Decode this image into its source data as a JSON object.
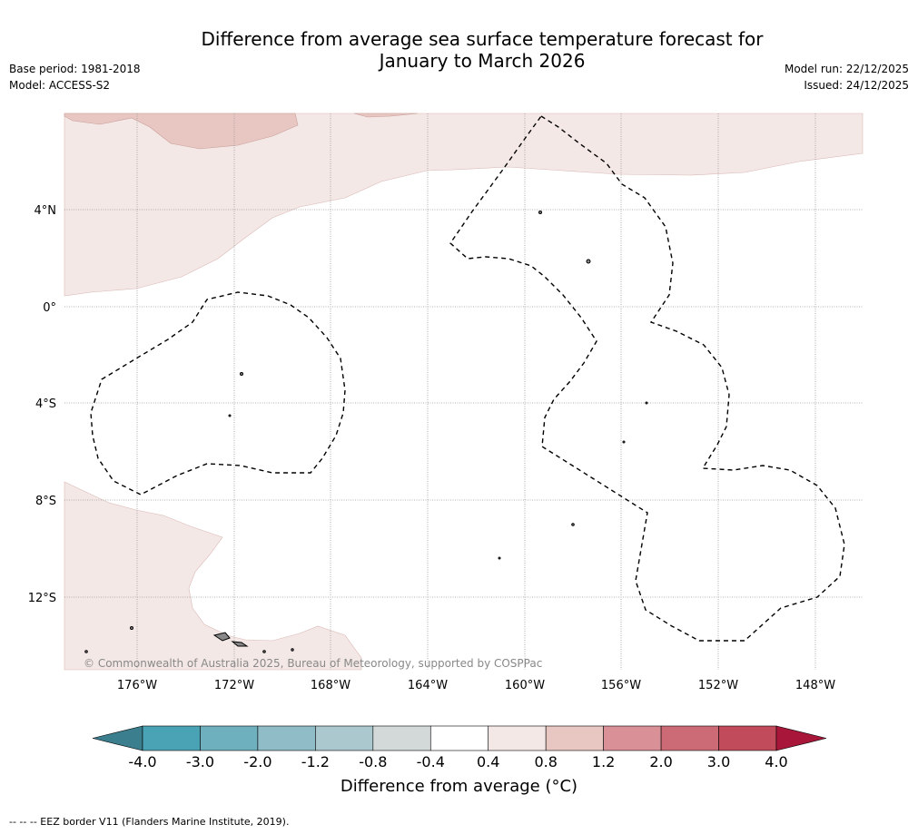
{
  "title": {
    "line1": "Difference from average sea surface temperature forecast for",
    "line2": "January to March 2026"
  },
  "meta_left": {
    "base_period": "Base period: 1981-2018",
    "model": "Model: ACCESS-S2"
  },
  "meta_right": {
    "model_run": "Model run: 22/12/2025",
    "issued": "Issued: 24/12/2025"
  },
  "map": {
    "lat_labels": [
      "4°N",
      "0°",
      "4°S",
      "8°S",
      "12°S"
    ],
    "lon_labels": [
      "176°W",
      "172°W",
      "168°W",
      "164°W",
      "160°W",
      "156°W",
      "152°W",
      "148°W"
    ],
    "copyright": "© Commonwealth of Australia 2025, Bureau of Meteorology, supported by COSPPac",
    "colors": {
      "anomaly_0_4_0_8": "#f4e8e6",
      "anomaly_0_8_1_2": "#e8c6c1",
      "land": "#888888",
      "eez_line": "#000000"
    }
  },
  "colorbar": {
    "title": "Difference from average (°C)",
    "ticks": [
      "-4.0",
      "-3.0",
      "-2.0",
      "-1.2",
      "-0.8",
      "-0.4",
      "0.4",
      "0.8",
      "1.2",
      "2.0",
      "3.0",
      "4.0"
    ],
    "colors": [
      "#3b7f8f",
      "#4aa3b4",
      "#6fb0bf",
      "#8fbcc7",
      "#aac8cd",
      "#d3d8d9",
      "#ffffff",
      "#f4e8e6",
      "#e8c6c1",
      "#d99096",
      "#cc6b75",
      "#c14b5a",
      "#a8163a"
    ]
  },
  "footnote": "--  --  -- EEZ border V11 (Flanders Marine Institute, 2019)."
}
